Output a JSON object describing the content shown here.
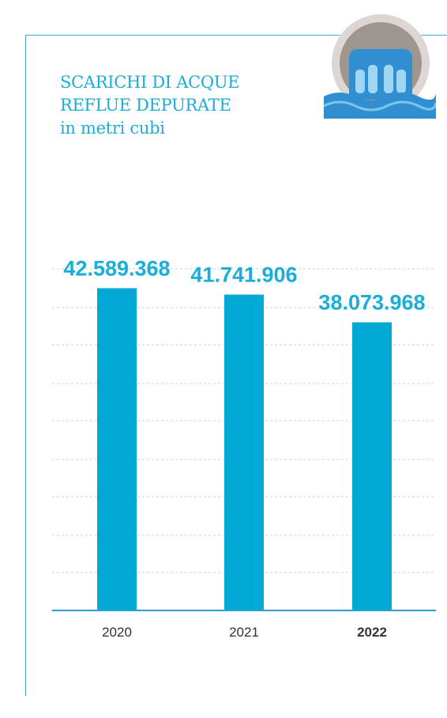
{
  "title": {
    "line1": "SCARICHI DI ACQUE",
    "line2": "REFLUE DEPURATE",
    "line3": "in metri cubi"
  },
  "icon": "wastewater-discharge-pipe-icon",
  "colors": {
    "accent": "#1aaed6",
    "bar": "#00a9d3",
    "grid": "#b9dde8",
    "axis": "#2a9fd0"
  },
  "chart_data": {
    "type": "bar",
    "categories": [
      "2020",
      "2021",
      "2022"
    ],
    "values": [
      42589368,
      41741906,
      38073968
    ],
    "value_labels": [
      "42.589.368",
      "41.741.906",
      "38.073.968"
    ],
    "highlighted_category": "2022",
    "title": "SCARICHI DI ACQUE REFLUE DEPURATE",
    "subtitle": "in metri cubi",
    "xlabel": "",
    "ylabel": "",
    "ylim": [
      0,
      44000000
    ],
    "grid": true,
    "legend": "none"
  }
}
